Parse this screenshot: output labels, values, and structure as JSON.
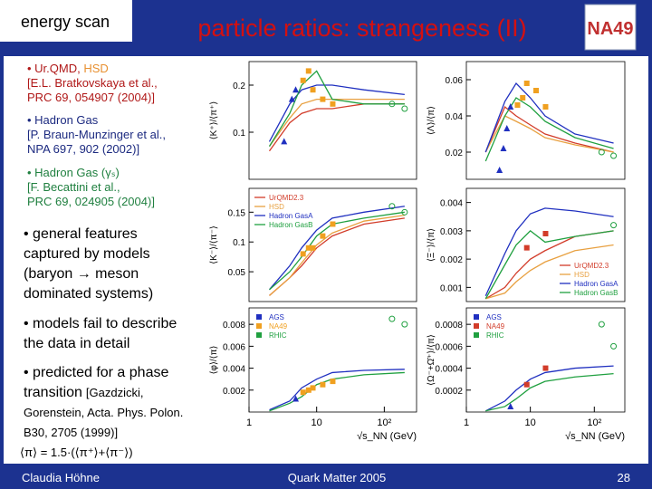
{
  "header": {
    "tag": "energy scan",
    "title": "particle ratios: strangeness (II)",
    "logo": "NA49"
  },
  "references": [
    {
      "model": "• Ur.QMD, ",
      "model_extra": "HSD",
      "citation": [
        "[E.L. Bratkovskaya et al.,",
        "PRC 69, 054907 (2004)]"
      ]
    },
    {
      "model": "• Hadron Gas",
      "citation": [
        "[P. Braun-Munzinger et al.,",
        "NPA 697, 902 (2002)]"
      ]
    },
    {
      "model": "• Hadron Gas (γₛ)",
      "citation": [
        "[F. Becattini et al.,",
        "PRC 69, 024905 (2004)]"
      ]
    }
  ],
  "points": [
    {
      "lines": [
        "• general features",
        "captured by models",
        "(baryon → meson",
        "dominated systems)"
      ]
    },
    {
      "lines": [
        "• models fail to describe",
        "the data in detail"
      ]
    },
    {
      "lines": [
        "•  predicted for a phase",
        "transition"
      ],
      "citation": [
        "[Gazdzicki,",
        "Gorenstein, Acta. Phys. Polon.",
        "B30, 2705 (1999)]"
      ]
    }
  ],
  "formula": "⟨π⟩ = 1.5·(⟨π⁺⟩+⟨π⁻⟩)",
  "footer": {
    "author": "Claudia Höhne",
    "event": "Quark Matter 2005",
    "page": "28"
  },
  "chart_data": [
    {
      "type": "scatter",
      "ylabel": "⟨K⁺⟩/⟨π⁺⟩",
      "xscale": "log",
      "xlim": [
        1,
        300
      ],
      "ylim": [
        0,
        0.25
      ],
      "yticks": [
        0.1,
        0.2
      ],
      "series": [
        {
          "color": "#d23c2a",
          "x": [
            2,
            4,
            6,
            10,
            17,
            50,
            200
          ],
          "values": [
            0.06,
            0.12,
            0.14,
            0.15,
            0.15,
            0.16,
            0.16
          ]
        },
        {
          "color": "#e8a040",
          "x": [
            2,
            4,
            6,
            10,
            17,
            50,
            200
          ],
          "values": [
            0.07,
            0.13,
            0.16,
            0.17,
            0.17,
            0.17,
            0.17
          ]
        },
        {
          "color": "#2030c0",
          "x": [
            2,
            4,
            6,
            10,
            17,
            50,
            200
          ],
          "values": [
            0.08,
            0.16,
            0.19,
            0.2,
            0.2,
            0.19,
            0.18
          ]
        },
        {
          "color": "#20a040",
          "x": [
            2,
            4,
            6,
            10,
            17,
            50,
            200
          ],
          "values": [
            0.07,
            0.14,
            0.2,
            0.23,
            0.17,
            0.16,
            0.16
          ]
        },
        {
          "color": "#2030c0",
          "marker": "triangle",
          "x": [
            3.3,
            4.3,
            4.9
          ],
          "values": [
            0.08,
            0.17,
            0.19
          ]
        },
        {
          "color": "#f0a020",
          "marker": "square",
          "x": [
            6.3,
            7.6,
            8.8,
            12.3,
            17.3
          ],
          "values": [
            0.21,
            0.23,
            0.19,
            0.17,
            0.16
          ]
        },
        {
          "color": "#20a040",
          "marker": "circle",
          "x": [
            130,
            200
          ],
          "values": [
            0.16,
            0.15
          ]
        }
      ]
    },
    {
      "type": "scatter",
      "ylabel": "⟨Λ⟩/⟨π⟩",
      "xscale": "log",
      "xlim": [
        1,
        300
      ],
      "ylim": [
        0.005,
        0.07
      ],
      "yticks": [
        0.02,
        0.04,
        0.06
      ],
      "series": [
        {
          "color": "#d23c2a",
          "x": [
            2,
            4,
            6,
            10,
            17,
            50,
            200
          ],
          "values": [
            0.02,
            0.045,
            0.04,
            0.035,
            0.03,
            0.025,
            0.02
          ]
        },
        {
          "color": "#e8a040",
          "x": [
            2,
            4,
            6,
            10,
            17,
            50,
            200
          ],
          "values": [
            0.02,
            0.04,
            0.037,
            0.033,
            0.028,
            0.024,
            0.02
          ]
        },
        {
          "color": "#2030c0",
          "x": [
            2,
            4,
            6,
            10,
            17,
            50,
            200
          ],
          "values": [
            0.02,
            0.048,
            0.058,
            0.05,
            0.04,
            0.03,
            0.025
          ]
        },
        {
          "color": "#20a040",
          "x": [
            2,
            4,
            6,
            10,
            17,
            50,
            200
          ],
          "values": [
            0.015,
            0.04,
            0.05,
            0.045,
            0.037,
            0.028,
            0.022
          ]
        },
        {
          "color": "#2030c0",
          "marker": "triangle",
          "x": [
            3.3,
            3.8,
            4.3,
            4.9
          ],
          "values": [
            0.01,
            0.022,
            0.033,
            0.045
          ]
        },
        {
          "color": "#f0a020",
          "marker": "square",
          "x": [
            6.3,
            7.6,
            8.8,
            12.3,
            17.3
          ],
          "values": [
            0.046,
            0.05,
            0.058,
            0.054,
            0.045
          ]
        },
        {
          "color": "#20a040",
          "marker": "circle",
          "x": [
            130,
            200
          ],
          "values": [
            0.02,
            0.018
          ]
        }
      ]
    },
    {
      "type": "scatter",
      "ylabel": "⟨K⁻⟩/⟨π⁻⟩",
      "xscale": "log",
      "xlim": [
        1,
        300
      ],
      "ylim": [
        0,
        0.19
      ],
      "yticks": [
        0.05,
        0.1,
        0.15
      ],
      "legend": "upper left",
      "series": [
        {
          "name": "UrQMD2.3",
          "color": "#d23c2a",
          "x": [
            2,
            4,
            6,
            10,
            17,
            50,
            200
          ],
          "values": [
            0.01,
            0.04,
            0.06,
            0.09,
            0.11,
            0.13,
            0.14
          ]
        },
        {
          "name": "HSD",
          "color": "#e8a040",
          "x": [
            2,
            4,
            6,
            10,
            17,
            50,
            200
          ],
          "values": [
            0.01,
            0.04,
            0.065,
            0.095,
            0.115,
            0.135,
            0.145
          ]
        },
        {
          "name": "Hadron GasA",
          "color": "#2030c0",
          "x": [
            2,
            4,
            6,
            10,
            17,
            50,
            200
          ],
          "values": [
            0.02,
            0.06,
            0.09,
            0.12,
            0.14,
            0.15,
            0.16
          ]
        },
        {
          "name": "Hadron GasB",
          "color": "#20a040",
          "x": [
            2,
            4,
            6,
            10,
            17,
            50,
            200
          ],
          "values": [
            0.02,
            0.05,
            0.075,
            0.11,
            0.13,
            0.14,
            0.15
          ]
        },
        {
          "color": "#f0a020",
          "marker": "square",
          "x": [
            6.3,
            7.6,
            8.8,
            12.3,
            17.3
          ],
          "values": [
            0.08,
            0.09,
            0.09,
            0.11,
            0.13
          ]
        },
        {
          "color": "#20a040",
          "marker": "circle",
          "x": [
            130,
            200
          ],
          "values": [
            0.16,
            0.15
          ]
        }
      ]
    },
    {
      "type": "scatter",
      "ylabel": "⟨Ξ⁻⟩/⟨π⟩",
      "xscale": "log",
      "xlim": [
        1,
        300
      ],
      "ylim": [
        0.0005,
        0.0045
      ],
      "yticks": [
        0.001,
        0.002,
        0.003,
        0.004
      ],
      "legend": "lower right",
      "series": [
        {
          "name": "UrQMD2.3",
          "color": "#d23c2a",
          "x": [
            2,
            4,
            6,
            10,
            17,
            50,
            200
          ],
          "values": [
            0.0006,
            0.001,
            0.0015,
            0.002,
            0.0023,
            0.0028,
            0.003
          ]
        },
        {
          "name": "HSD",
          "color": "#e8a040",
          "x": [
            2,
            4,
            6,
            10,
            17,
            50,
            200
          ],
          "values": [
            0.0006,
            0.0008,
            0.0012,
            0.0016,
            0.0019,
            0.0023,
            0.0025
          ]
        },
        {
          "name": "Hadron GasA",
          "color": "#2030c0",
          "x": [
            2,
            4,
            6,
            10,
            17,
            50,
            200
          ],
          "values": [
            0.0007,
            0.0022,
            0.003,
            0.0036,
            0.0038,
            0.0037,
            0.0035
          ]
        },
        {
          "name": "Hadron GasB",
          "color": "#20a040",
          "x": [
            2,
            4,
            6,
            10,
            17,
            50,
            200
          ],
          "values": [
            0.0006,
            0.0018,
            0.0025,
            0.003,
            0.0026,
            0.0028,
            0.003
          ]
        },
        {
          "color": "#d23c2a",
          "marker": "square",
          "x": [
            8.8,
            17.3
          ],
          "values": [
            0.0024,
            0.0029
          ]
        },
        {
          "color": "#20a040",
          "marker": "circle",
          "x": [
            200
          ],
          "values": [
            0.0032
          ]
        }
      ]
    },
    {
      "type": "scatter",
      "ylabel": "⟨φ⟩/⟨π⟩",
      "xscale": "log",
      "xlim": [
        1,
        300
      ],
      "ylim": [
        0,
        0.0095
      ],
      "yticks": [
        0.002,
        0.004,
        0.006,
        0.008
      ],
      "xticks": [
        {
          "value": 1,
          "label": "1"
        },
        10,
        {
          "value": 100,
          "label": "10²"
        }
      ],
      "xlabel": "√s_NN (GeV)",
      "legend": "upper left",
      "series": [
        {
          "color": "#2030c0",
          "x": [
            2,
            4,
            6,
            10,
            17,
            50,
            200
          ],
          "values": [
            0.0002,
            0.001,
            0.0022,
            0.003,
            0.0036,
            0.0038,
            0.0039
          ]
        },
        {
          "color": "#20a040",
          "x": [
            2,
            4,
            6,
            10,
            17,
            50,
            200
          ],
          "values": [
            0.0001,
            0.0008,
            0.0014,
            0.0025,
            0.003,
            0.0034,
            0.0036
          ]
        },
        {
          "name": "AGS",
          "color": "#2030c0",
          "marker": "triangle",
          "x": [
            4.9
          ],
          "values": [
            0.0012
          ]
        },
        {
          "name": "NA49",
          "color": "#f0a020",
          "marker": "square",
          "x": [
            6.3,
            7.6,
            8.8,
            12.3,
            17.3
          ],
          "values": [
            0.0018,
            0.002,
            0.0022,
            0.0025,
            0.0028
          ]
        },
        {
          "name": "RHIC",
          "color": "#20a040",
          "marker": "circle",
          "x": [
            130,
            200
          ],
          "values": [
            0.0085,
            0.008
          ]
        }
      ]
    },
    {
      "type": "scatter",
      "ylabel": "⟨Ω⁻+Ω̄⁺⟩/⟨π⟩",
      "xscale": "log",
      "xlim": [
        1,
        300
      ],
      "ylim": [
        0,
        0.00095
      ],
      "yticks": [
        0.0002,
        0.0004,
        0.0006,
        0.0008
      ],
      "xticks": [
        {
          "value": 1,
          "label": "1"
        },
        10,
        {
          "value": 100,
          "label": "10²"
        }
      ],
      "xlabel": "√s_NN (GeV)",
      "legend": "upper left",
      "series": [
        {
          "color": "#2030c0",
          "x": [
            2,
            4,
            6,
            10,
            17,
            50,
            200
          ],
          "values": [
            1e-05,
            0.0001,
            0.0002,
            0.0003,
            0.00036,
            0.0004,
            0.00042
          ]
        },
        {
          "color": "#20a040",
          "x": [
            2,
            4,
            6,
            10,
            17,
            50,
            200
          ],
          "values": [
            1e-05,
            5e-05,
            0.00012,
            0.00022,
            0.00028,
            0.00032,
            0.00035
          ]
        },
        {
          "name": "AGS",
          "color": "#2030c0",
          "marker": "triangle",
          "x": [
            4.9
          ],
          "values": [
            5e-05
          ]
        },
        {
          "name": "NA49",
          "color": "#d23c2a",
          "marker": "square",
          "x": [
            8.8,
            17.3
          ],
          "values": [
            0.00025,
            0.0004
          ]
        },
        {
          "name": "RHIC",
          "color": "#20a040",
          "marker": "circle",
          "x": [
            130,
            200
          ],
          "values": [
            0.0008,
            0.0006
          ]
        }
      ]
    }
  ]
}
